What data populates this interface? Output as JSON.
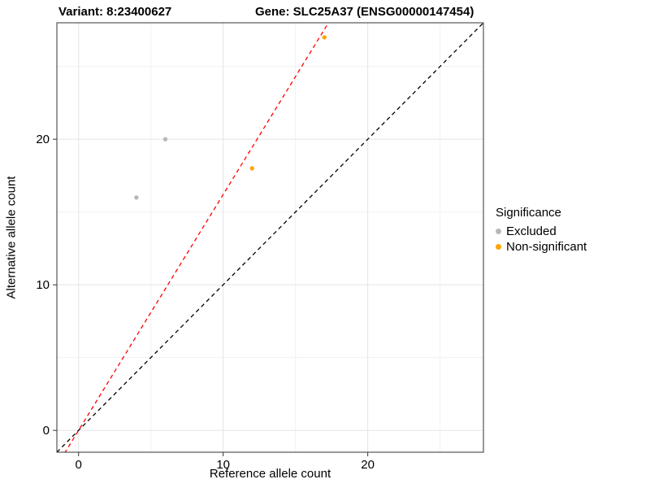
{
  "titles": {
    "variant": "Variant: 8:23400627",
    "gene": "Gene: SLC25A37 (ENSG00000147454)"
  },
  "chart_data": {
    "type": "scatter",
    "xlabel": "Reference allele count",
    "ylabel": "Alternative allele count",
    "xlim": [
      -1.5,
      28
    ],
    "ylim": [
      -1.5,
      28
    ],
    "xticks": [
      0,
      10,
      20
    ],
    "yticks": [
      0,
      10,
      20
    ],
    "xminor": [
      5,
      15,
      25
    ],
    "yminor": [
      5,
      15,
      25
    ],
    "grid": true,
    "series": [
      {
        "name": "Excluded",
        "color": "#b8b8b8",
        "points": [
          [
            4,
            16
          ],
          [
            6,
            20
          ]
        ]
      },
      {
        "name": "Non-significant",
        "color": "#FFA500",
        "points": [
          [
            12,
            18
          ],
          [
            17,
            27
          ]
        ]
      }
    ],
    "lines": [
      {
        "name": "identity-line",
        "color": "#000000",
        "dashed": true,
        "slope": 1,
        "intercept": 0
      },
      {
        "name": "expected-ratio-line",
        "color": "#FF0000",
        "dashed": true,
        "slope": 1.62,
        "intercept": 0
      }
    ],
    "legend": {
      "title": "Significance",
      "position": "right"
    },
    "colors": {
      "grid_major": "#e4e4e4",
      "grid_minor": "#f1f1f1",
      "panel_border": "#333333",
      "tick": "#333333",
      "panel_bg": "#ffffff"
    }
  }
}
